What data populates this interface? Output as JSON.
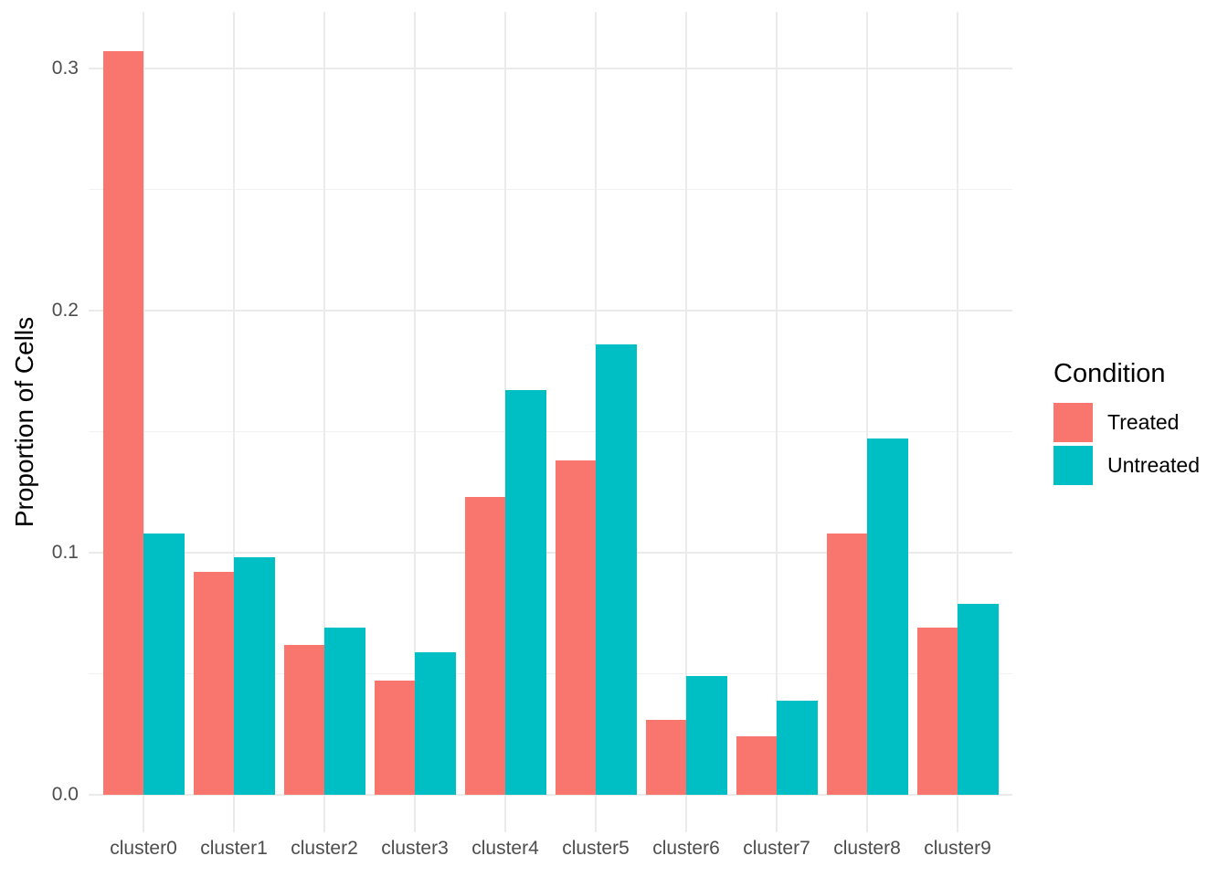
{
  "chart_data": {
    "type": "bar",
    "title": "",
    "xlabel": "",
    "ylabel": "Proportion of Cells",
    "categories": [
      "cluster0",
      "cluster1",
      "cluster2",
      "cluster3",
      "cluster4",
      "cluster5",
      "cluster6",
      "cluster7",
      "cluster8",
      "cluster9"
    ],
    "series": [
      {
        "name": "Treated",
        "color": "#F8766D",
        "values": [
          0.307,
          0.092,
          0.062,
          0.047,
          0.123,
          0.138,
          0.031,
          0.024,
          0.108,
          0.069
        ]
      },
      {
        "name": "Untreated",
        "color": "#00BFC4",
        "values": [
          0.108,
          0.098,
          0.069,
          0.059,
          0.167,
          0.186,
          0.049,
          0.039,
          0.147,
          0.079
        ]
      }
    ],
    "legend": {
      "title": "Condition",
      "position": "right"
    },
    "y_ticks": [
      {
        "label": "0.0",
        "value": 0.0
      },
      {
        "label": "0.1",
        "value": 0.1
      },
      {
        "label": "0.2",
        "value": 0.2
      },
      {
        "label": "0.3",
        "value": 0.3
      }
    ],
    "y_minor_ticks": [
      0.05,
      0.15,
      0.25
    ],
    "ylim": [
      0,
      0.31
    ],
    "grid": "on",
    "colors": {
      "background": "#FFFFFF",
      "grid_major": "#EBEBEB",
      "grid_minor": "#F1F1F1",
      "axis_text": "#4D4D4D",
      "axis_title": "#000000"
    }
  }
}
